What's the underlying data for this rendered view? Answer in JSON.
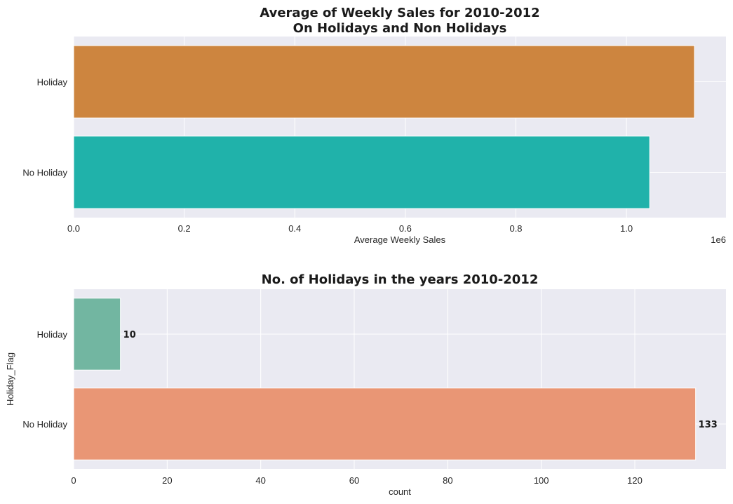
{
  "chart_data": [
    {
      "type": "bar",
      "orientation": "horizontal",
      "title": "Average of Weekly Sales for 2010-2012",
      "subtitle": "On Holidays and Non Holidays",
      "categories": [
        "Holiday",
        "No Holiday"
      ],
      "values": [
        1123000,
        1042000
      ],
      "colors": [
        "#cd853f",
        "#20b2aa"
      ],
      "xlabel": "Average Weekly Sales",
      "ylabel": "",
      "xlim": [
        0,
        1180000
      ],
      "xticks": [
        "0.0",
        "0.2",
        "0.4",
        "0.6",
        "0.8",
        "1.0"
      ],
      "xtick_values": [
        0,
        200000,
        400000,
        600000,
        800000,
        1000000
      ],
      "offset_text": "1e6",
      "grid": true
    },
    {
      "type": "bar",
      "orientation": "horizontal",
      "title": "No. of Holidays in the years 2010-2012",
      "categories": [
        "Holiday",
        "No Holiday"
      ],
      "values": [
        10,
        133
      ],
      "data_labels": [
        "10",
        "133"
      ],
      "colors": [
        "#72b6a1",
        "#e99675"
      ],
      "xlabel": "count",
      "ylabel": "Holiday_Flag",
      "xlim": [
        0,
        139.5
      ],
      "xticks": [
        "0",
        "20",
        "40",
        "60",
        "80",
        "100",
        "120"
      ],
      "xtick_values": [
        0,
        20,
        40,
        60,
        80,
        100,
        120
      ],
      "grid": true
    }
  ]
}
